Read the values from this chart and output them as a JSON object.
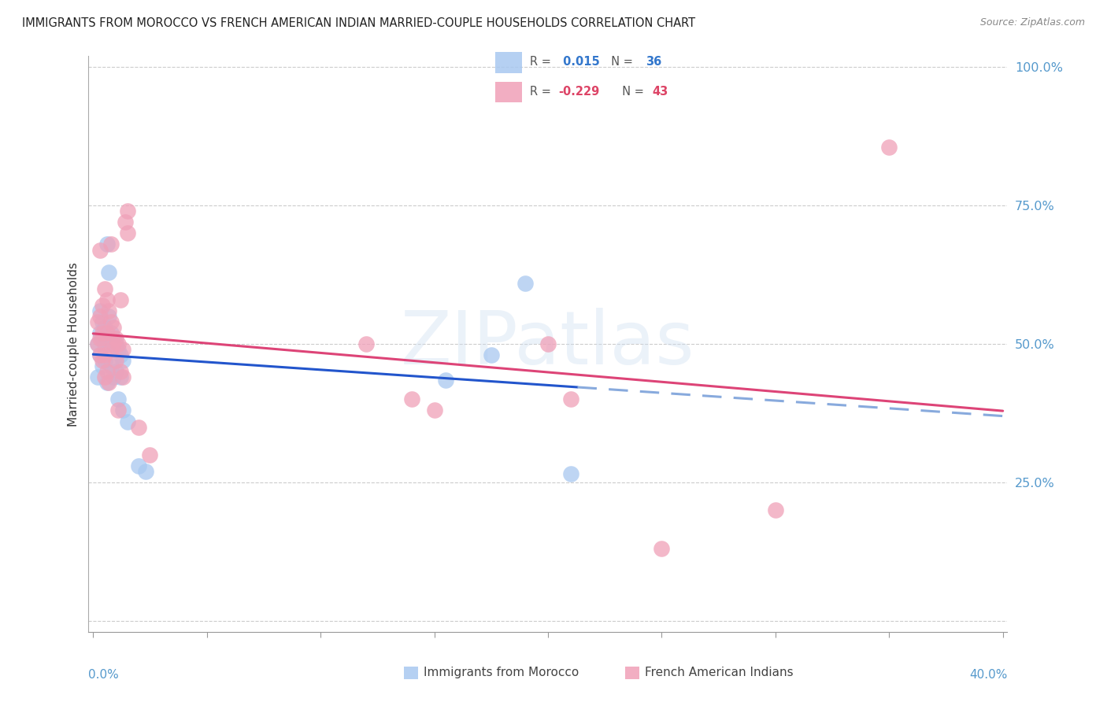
{
  "title": "IMMIGRANTS FROM MOROCCO VS FRENCH AMERICAN INDIAN MARRIED-COUPLE HOUSEHOLDS CORRELATION CHART",
  "source": "Source: ZipAtlas.com",
  "ylabel": "Married-couple Households",
  "yticks": [
    0.0,
    0.25,
    0.5,
    0.75,
    1.0
  ],
  "ytick_labels": [
    "",
    "25.0%",
    "50.0%",
    "75.0%",
    "100.0%"
  ],
  "ylim": [
    -0.02,
    1.02
  ],
  "xlim": [
    -0.002,
    0.402
  ],
  "legend1_R": 0.015,
  "legend1_N": 36,
  "legend2_R": -0.229,
  "legend2_N": 43,
  "color_blue": "#a8c8f0",
  "color_pink": "#f0a0b8",
  "line_blue": "#2255cc",
  "line_pink": "#dd4477",
  "line_dashed_blue": "#88aadd",
  "watermark": "ZIPatlas",
  "background_color": "#ffffff",
  "blue_x": [
    0.002,
    0.002,
    0.003,
    0.003,
    0.003,
    0.004,
    0.004,
    0.004,
    0.005,
    0.005,
    0.005,
    0.006,
    0.006,
    0.006,
    0.007,
    0.007,
    0.007,
    0.008,
    0.008,
    0.009,
    0.009,
    0.01,
    0.01,
    0.011,
    0.011,
    0.012,
    0.012,
    0.013,
    0.013,
    0.015,
    0.02,
    0.023,
    0.155,
    0.175,
    0.19,
    0.21
  ],
  "blue_y": [
    0.44,
    0.5,
    0.48,
    0.52,
    0.56,
    0.46,
    0.51,
    0.54,
    0.47,
    0.5,
    0.53,
    0.43,
    0.51,
    0.68,
    0.5,
    0.55,
    0.63,
    0.46,
    0.52,
    0.44,
    0.51,
    0.45,
    0.5,
    0.4,
    0.49,
    0.44,
    0.48,
    0.38,
    0.47,
    0.36,
    0.28,
    0.27,
    0.435,
    0.48,
    0.61,
    0.265
  ],
  "pink_x": [
    0.002,
    0.002,
    0.003,
    0.003,
    0.003,
    0.003,
    0.004,
    0.004,
    0.004,
    0.005,
    0.005,
    0.005,
    0.006,
    0.006,
    0.006,
    0.007,
    0.007,
    0.008,
    0.008,
    0.008,
    0.009,
    0.009,
    0.01,
    0.01,
    0.011,
    0.011,
    0.012,
    0.012,
    0.013,
    0.013,
    0.014,
    0.015,
    0.015,
    0.02,
    0.025,
    0.12,
    0.14,
    0.15,
    0.2,
    0.21,
    0.25,
    0.3,
    0.35
  ],
  "pink_y": [
    0.5,
    0.54,
    0.48,
    0.51,
    0.55,
    0.67,
    0.47,
    0.52,
    0.57,
    0.44,
    0.48,
    0.6,
    0.45,
    0.52,
    0.58,
    0.43,
    0.56,
    0.49,
    0.54,
    0.68,
    0.5,
    0.53,
    0.47,
    0.51,
    0.38,
    0.5,
    0.45,
    0.58,
    0.44,
    0.49,
    0.72,
    0.74,
    0.7,
    0.35,
    0.3,
    0.5,
    0.4,
    0.38,
    0.5,
    0.4,
    0.13,
    0.2,
    0.855
  ],
  "bottom_label1": "Immigrants from Morocco",
  "bottom_label2": "French American Indians"
}
